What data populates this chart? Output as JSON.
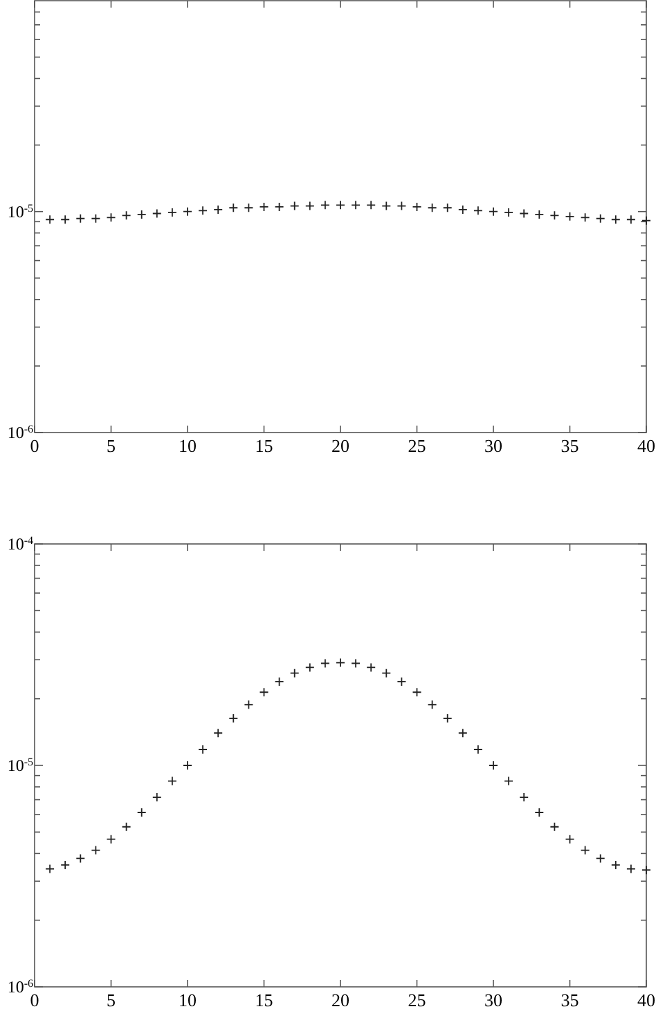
{
  "chart_data": [
    {
      "type": "scatter",
      "marker": "cross",
      "log": true,
      "x": [
        1,
        2,
        3,
        4,
        5,
        6,
        7,
        8,
        9,
        10,
        11,
        12,
        13,
        14,
        15,
        16,
        17,
        18,
        19,
        20,
        21,
        22,
        23,
        24,
        25,
        26,
        27,
        28,
        29,
        30,
        31,
        32,
        33,
        34,
        35,
        36,
        37,
        38,
        39,
        40
      ],
      "series": [
        {
          "color": "#222222",
          "values": [
            9.2e-06,
            9.2e-06,
            9.3e-06,
            9.3e-06,
            9.4e-06,
            9.6e-06,
            9.7e-06,
            9.8e-06,
            9.9e-06,
            1e-05,
            1.01e-05,
            1.02e-05,
            1.04e-05,
            1.04e-05,
            1.05e-05,
            1.05e-05,
            1.06e-05,
            1.06e-05,
            1.07e-05,
            1.07e-05,
            1.07e-05,
            1.07e-05,
            1.06e-05,
            1.06e-05,
            1.05e-05,
            1.04e-05,
            1.04e-05,
            1.02e-05,
            1.01e-05,
            1e-05,
            9.9e-06,
            9.8e-06,
            9.7e-06,
            9.6e-06,
            9.5e-06,
            9.4e-06,
            9.3e-06,
            9.2e-06,
            9.2e-06,
            9.1e-06
          ]
        }
      ],
      "xlim": [
        0,
        40
      ],
      "xticks": [
        0,
        5,
        10,
        15,
        20,
        25,
        30,
        35,
        40
      ],
      "ylim": [
        1e-06,
        9e-05
      ],
      "yticks": [
        {
          "value": 1e-06,
          "label": "10$^{-6}$"
        },
        {
          "value": 2e-06,
          "label": null
        },
        {
          "value": 3e-06,
          "label": null
        },
        {
          "value": 4e-06,
          "label": null
        },
        {
          "value": 5e-06,
          "label": null
        },
        {
          "value": 6e-06,
          "label": null
        },
        {
          "value": 7e-06,
          "label": null
        },
        {
          "value": 8e-06,
          "label": null
        },
        {
          "value": 9e-06,
          "label": null
        },
        {
          "value": 1e-05,
          "label": "10$^{-5}$"
        },
        {
          "value": 2e-05,
          "label": null
        },
        {
          "value": 3e-05,
          "label": null
        },
        {
          "value": 4e-05,
          "label": null
        },
        {
          "value": 5e-05,
          "label": null
        },
        {
          "value": 6e-05,
          "label": null
        },
        {
          "value": 7e-05,
          "label": null
        },
        {
          "value": 8e-05,
          "label": null
        }
      ]
    },
    {
      "type": "scatter",
      "marker": "cross",
      "log": true,
      "x": [
        1,
        2,
        3,
        4,
        5,
        6,
        7,
        8,
        9,
        10,
        11,
        12,
        13,
        14,
        15,
        16,
        17,
        18,
        19,
        20,
        21,
        22,
        23,
        24,
        25,
        26,
        27,
        28,
        29,
        30,
        31,
        32,
        33,
        34,
        35,
        36,
        37,
        38,
        39,
        40
      ],
      "series": [
        {
          "color": "#222222",
          "values": [
            3.41e-06,
            3.55e-06,
            3.8e-06,
            4.14e-06,
            4.64e-06,
            5.28e-06,
            6.13e-06,
            7.18e-06,
            8.5e-06,
            1e-05,
            1.18e-05,
            1.4e-05,
            1.63e-05,
            1.88e-05,
            2.14e-05,
            2.39e-05,
            2.61e-05,
            2.77e-05,
            2.89e-05,
            2.91e-05,
            2.89e-05,
            2.77e-05,
            2.61e-05,
            2.39e-05,
            2.14e-05,
            1.88e-05,
            1.63e-05,
            1.4e-05,
            1.18e-05,
            1e-05,
            8.5e-06,
            7.18e-06,
            6.13e-06,
            5.28e-06,
            4.64e-06,
            4.14e-06,
            3.8e-06,
            3.55e-06,
            3.41e-06,
            3.37e-06
          ]
        }
      ],
      "xlim": [
        0,
        40
      ],
      "xticks": [
        0,
        5,
        10,
        15,
        20,
        25,
        30,
        35,
        40
      ],
      "ylim": [
        1e-06,
        0.0001
      ],
      "yticks": [
        {
          "value": 1e-06,
          "label": "10$^{-6}$"
        },
        {
          "value": 2e-06,
          "label": null
        },
        {
          "value": 3e-06,
          "label": null
        },
        {
          "value": 4e-06,
          "label": null
        },
        {
          "value": 5e-06,
          "label": null
        },
        {
          "value": 6e-06,
          "label": null
        },
        {
          "value": 7e-06,
          "label": null
        },
        {
          "value": 8e-06,
          "label": null
        },
        {
          "value": 9e-06,
          "label": null
        },
        {
          "value": 1e-05,
          "label": "10$^{-5}$"
        },
        {
          "value": 2e-05,
          "label": null
        },
        {
          "value": 3e-05,
          "label": null
        },
        {
          "value": 4e-05,
          "label": null
        },
        {
          "value": 5e-05,
          "label": null
        },
        {
          "value": 6e-05,
          "label": null
        },
        {
          "value": 7e-05,
          "label": null
        },
        {
          "value": 8e-05,
          "label": null
        },
        {
          "value": 9e-05,
          "label": null
        },
        {
          "value": 0.0001,
          "label": "10$^{-4}$"
        }
      ]
    }
  ]
}
